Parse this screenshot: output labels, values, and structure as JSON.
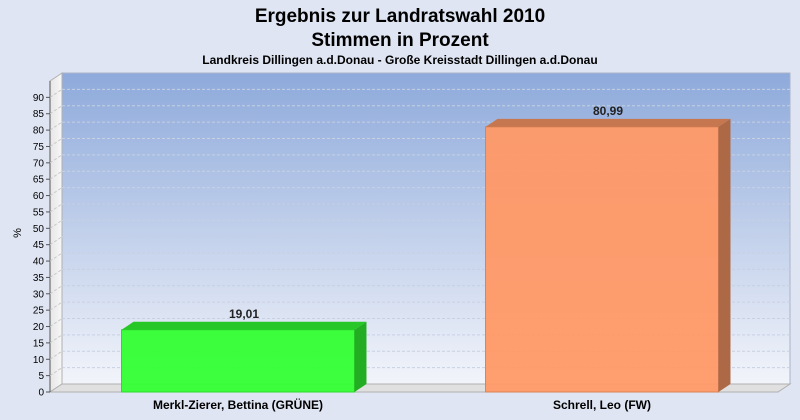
{
  "chart_data": {
    "type": "bar",
    "title": "Ergebnis zur Landratswahl 2010",
    "title2": "Stimmen in Prozent",
    "subtitle": "Landkreis Dillingen a.d.Donau - Große Kreisstadt Dillingen a.d.Donau",
    "ylabel": "%",
    "xlabel": "",
    "ylim": [
      0,
      95
    ],
    "yticks": [
      0,
      5,
      10,
      15,
      20,
      25,
      30,
      35,
      40,
      45,
      50,
      55,
      60,
      65,
      70,
      75,
      80,
      85,
      90
    ],
    "categories": [
      "Merkl-Zierer, Bettina (GRÜNE)",
      "Schrell, Leo (FW)"
    ],
    "values": [
      19.01,
      80.99
    ],
    "value_labels": [
      "19,01",
      "80,99"
    ],
    "colors": [
      "#33ff33",
      "#ff9966"
    ],
    "grid": true,
    "legend": "none"
  }
}
